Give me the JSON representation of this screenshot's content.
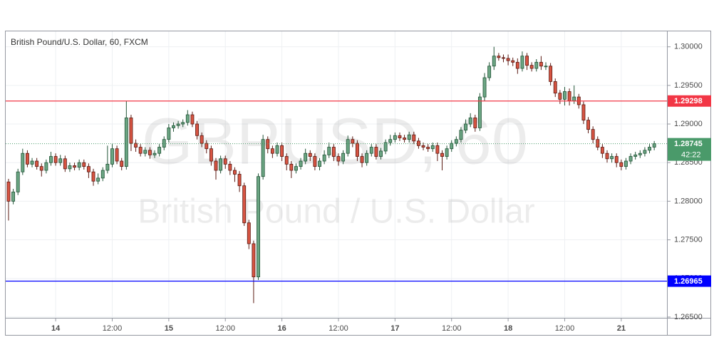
{
  "chart_data": {
    "type": "candlestick",
    "title": "British Pound/U.S. Dollar, 60, FXCM",
    "watermark": {
      "symbol": "GBPUSD, 60",
      "description": "British Pound / U.S. Dollar"
    },
    "up_color": "#6ba583",
    "up_border": "#225437",
    "down_color": "#d75442",
    "down_border": "#5b1a13",
    "grid": true,
    "ylim": [
      1.2649,
      1.302
    ],
    "yticks": [
      {
        "value": 1.265,
        "label": "1.26500"
      },
      {
        "value": 1.27,
        "label": "1.27000"
      },
      {
        "value": 1.275,
        "label": "1.27500"
      },
      {
        "value": 1.28,
        "label": "1.28000"
      },
      {
        "value": 1.285,
        "label": "1.28500"
      },
      {
        "value": 1.29,
        "label": "1.29000"
      },
      {
        "value": 1.295,
        "label": "1.29500"
      },
      {
        "value": 1.3,
        "label": "1.30000"
      }
    ],
    "xlim": [
      -0.6,
      139.7
    ],
    "xticks": [
      {
        "value": 10,
        "label": "14"
      },
      {
        "value": 22,
        "label": "12:00"
      },
      {
        "value": 34,
        "label": "15"
      },
      {
        "value": 46,
        "label": "12:00"
      },
      {
        "value": 58,
        "label": "16"
      },
      {
        "value": 70,
        "label": "12:00"
      },
      {
        "value": 82,
        "label": "17"
      },
      {
        "value": 94,
        "label": "12:00"
      },
      {
        "value": 106,
        "label": "18"
      },
      {
        "value": 118,
        "label": "12:00"
      },
      {
        "value": 130,
        "label": "21"
      }
    ],
    "hlines": [
      {
        "value": 1.29298,
        "color": "#f23645"
      },
      {
        "value": 1.26965,
        "color": "#0000ff"
      }
    ],
    "last_price": 1.28745,
    "last_color": "#4a9a6a",
    "countdown": "42:22",
    "open": [
      1.2825,
      1.28,
      1.2812,
      1.2838,
      1.2862,
      1.2848,
      1.2852,
      1.2845,
      1.284,
      1.285,
      1.2858,
      1.285,
      1.2855,
      1.2842,
      1.2846,
      1.2844,
      1.285,
      1.2845,
      1.2838,
      1.2826,
      1.283,
      1.284,
      1.2848,
      1.2868,
      1.2852,
      1.2845,
      1.2908,
      1.2875,
      1.287,
      1.2862,
      1.2866,
      1.286,
      1.2862,
      1.287,
      1.288,
      1.2895,
      1.2898,
      1.29,
      1.2902,
      1.2912,
      1.29,
      1.2885,
      1.2875,
      1.2868,
      1.2852,
      1.284,
      1.2855,
      1.2848,
      1.284,
      1.2835,
      1.282,
      1.2772,
      1.2745,
      1.2702,
      1.2832,
      1.288,
      1.2868,
      1.2862,
      1.2872,
      1.2858,
      1.2848,
      1.284,
      1.2845,
      1.2852,
      1.2862,
      1.2858,
      1.2845,
      1.2852,
      1.286,
      1.287,
      1.2858,
      1.2852,
      1.2862,
      1.288,
      1.2875,
      1.2858,
      1.285,
      1.2862,
      1.287,
      1.2858,
      1.2865,
      1.2876,
      1.288,
      1.2885,
      1.2882,
      1.288,
      1.2886,
      1.2878,
      1.2872,
      1.287,
      1.2868,
      1.2872,
      1.2862,
      1.2858,
      1.2868,
      1.2875,
      1.288,
      1.2892,
      1.29,
      1.2908,
      1.2895,
      1.2935,
      1.296,
      1.2975,
      1.2988,
      1.2986,
      1.2985,
      1.2982,
      1.298,
      1.2972,
      1.2988,
      1.2976,
      1.2972,
      1.298,
      1.2975,
      1.2975,
      1.2955,
      1.294,
      1.2932,
      1.2942,
      1.293,
      1.2935,
      1.2925,
      1.2905,
      1.2893,
      1.288,
      1.287,
      1.2862,
      1.2855,
      1.2858,
      1.285,
      1.2845,
      1.2852,
      1.2858,
      1.286,
      1.2862,
      1.2866,
      1.287
    ],
    "high": [
      1.2829,
      1.2816,
      1.2842,
      1.2868,
      1.2866,
      1.2856,
      1.2856,
      1.2849,
      1.2854,
      1.2864,
      1.2862,
      1.286,
      1.2859,
      1.285,
      1.285,
      1.2854,
      1.2854,
      1.2849,
      1.2842,
      1.2836,
      1.2844,
      1.2872,
      1.2874,
      1.2872,
      1.2856,
      1.293,
      1.2912,
      1.288,
      1.2874,
      1.287,
      1.287,
      1.2866,
      1.2874,
      1.2884,
      1.29,
      1.2902,
      1.2904,
      1.2906,
      1.2918,
      1.2916,
      1.2904,
      1.2889,
      1.2879,
      1.2872,
      1.2856,
      1.2859,
      1.2859,
      1.2852,
      1.2844,
      1.2839,
      1.2824,
      1.2776,
      1.2749,
      1.2836,
      1.2886,
      1.2884,
      1.2872,
      1.2876,
      1.2876,
      1.2862,
      1.2852,
      1.2849,
      1.2856,
      1.2868,
      1.2866,
      1.2862,
      1.2856,
      1.2866,
      1.2876,
      1.2874,
      1.2862,
      1.2866,
      1.2885,
      1.2884,
      1.2879,
      1.2862,
      1.2866,
      1.2874,
      1.2874,
      1.2869,
      1.288,
      1.2886,
      1.2889,
      1.2889,
      1.2886,
      1.289,
      1.289,
      1.2882,
      1.2876,
      1.2874,
      1.2876,
      1.2876,
      1.2866,
      1.2872,
      1.2879,
      1.2884,
      1.2896,
      1.2906,
      1.2914,
      1.2912,
      1.294,
      1.2966,
      1.298,
      1.3,
      1.2992,
      1.299,
      1.299,
      1.2986,
      1.2985,
      1.2994,
      1.2992,
      1.298,
      1.2984,
      1.2988,
      1.298,
      1.2979,
      1.2959,
      1.2944,
      1.2948,
      1.2946,
      1.295,
      1.2939,
      1.2929,
      1.2909,
      1.2897,
      1.2884,
      1.2874,
      1.2866,
      1.2862,
      1.2862,
      1.2854,
      1.2856,
      1.2862,
      1.2864,
      1.2866,
      1.287,
      1.2874,
      1.2878
    ],
    "low": [
      1.2775,
      1.2796,
      1.2808,
      1.2834,
      1.2844,
      1.2844,
      1.2841,
      1.2832,
      1.2836,
      1.2846,
      1.2846,
      1.2846,
      1.2838,
      1.2838,
      1.284,
      1.284,
      1.2841,
      1.283,
      1.282,
      1.2822,
      1.2826,
      1.2836,
      1.2844,
      1.2848,
      1.284,
      1.2841,
      1.2865,
      1.2864,
      1.2858,
      1.2858,
      1.2855,
      1.2856,
      1.2858,
      1.2866,
      1.2876,
      1.289,
      1.2894,
      1.2896,
      1.2898,
      1.2896,
      1.288,
      1.287,
      1.2862,
      1.2846,
      1.2828,
      1.2836,
      1.2842,
      1.2834,
      1.2825,
      1.2812,
      1.2768,
      1.2738,
      1.2668,
      1.2698,
      1.2828,
      1.2862,
      1.2856,
      1.2858,
      1.2852,
      1.284,
      1.283,
      1.2836,
      1.2841,
      1.2848,
      1.2852,
      1.284,
      1.284,
      1.2848,
      1.2856,
      1.2852,
      1.2846,
      1.2848,
      1.2858,
      1.287,
      1.2852,
      1.2844,
      1.2846,
      1.2858,
      1.2854,
      1.2854,
      1.2861,
      1.2872,
      1.2876,
      1.2878,
      1.2876,
      1.2876,
      1.2874,
      1.2868,
      1.2866,
      1.2864,
      1.2864,
      1.2852,
      1.284,
      1.2854,
      1.2864,
      1.2871,
      1.2876,
      1.2888,
      1.2896,
      1.289,
      1.2891,
      1.293,
      1.2956,
      1.297,
      1.2982,
      1.298,
      1.2976,
      1.2975,
      1.2965,
      1.2968,
      1.297,
      1.2968,
      1.2968,
      1.297,
      1.297,
      1.295,
      1.2935,
      1.2926,
      1.2924,
      1.2924,
      1.2926,
      1.292,
      1.29,
      1.2888,
      1.2875,
      1.2866,
      1.2856,
      1.285,
      1.285,
      1.2844,
      1.284,
      1.2841,
      1.2848,
      1.2854,
      1.2856,
      1.2858,
      1.2862,
      1.2866
    ],
    "close": [
      1.28,
      1.2812,
      1.2838,
      1.2862,
      1.2848,
      1.2852,
      1.2845,
      1.284,
      1.285,
      1.2858,
      1.285,
      1.2855,
      1.2842,
      1.2846,
      1.2844,
      1.285,
      1.2845,
      1.2838,
      1.2826,
      1.283,
      1.284,
      1.2848,
      1.2868,
      1.2852,
      1.2845,
      1.2908,
      1.2875,
      1.287,
      1.2862,
      1.2866,
      1.286,
      1.2862,
      1.287,
      1.288,
      1.2895,
      1.2898,
      1.29,
      1.2902,
      1.2912,
      1.29,
      1.2885,
      1.2875,
      1.2868,
      1.2852,
      1.284,
      1.2855,
      1.2848,
      1.284,
      1.2835,
      1.282,
      1.2772,
      1.2745,
      1.2702,
      1.2832,
      1.288,
      1.2868,
      1.2862,
      1.2872,
      1.2858,
      1.2848,
      1.284,
      1.2845,
      1.2852,
      1.2862,
      1.2858,
      1.2845,
      1.2852,
      1.286,
      1.287,
      1.2858,
      1.2852,
      1.2862,
      1.288,
      1.2875,
      1.2858,
      1.285,
      1.2862,
      1.287,
      1.2858,
      1.2865,
      1.2876,
      1.288,
      1.2885,
      1.2882,
      1.288,
      1.2886,
      1.2878,
      1.2872,
      1.287,
      1.2868,
      1.2872,
      1.2862,
      1.2858,
      1.2868,
      1.2875,
      1.288,
      1.2892,
      1.29,
      1.2908,
      1.2895,
      1.2935,
      1.296,
      1.2975,
      1.2988,
      1.2986,
      1.2985,
      1.2982,
      1.298,
      1.2972,
      1.2988,
      1.2976,
      1.2972,
      1.298,
      1.2975,
      1.2975,
      1.2955,
      1.294,
      1.2932,
      1.2942,
      1.293,
      1.2935,
      1.2925,
      1.2905,
      1.2893,
      1.288,
      1.287,
      1.2862,
      1.2855,
      1.2858,
      1.285,
      1.2845,
      1.2852,
      1.2858,
      1.286,
      1.2862,
      1.2866,
      1.287,
      1.28745
    ]
  }
}
